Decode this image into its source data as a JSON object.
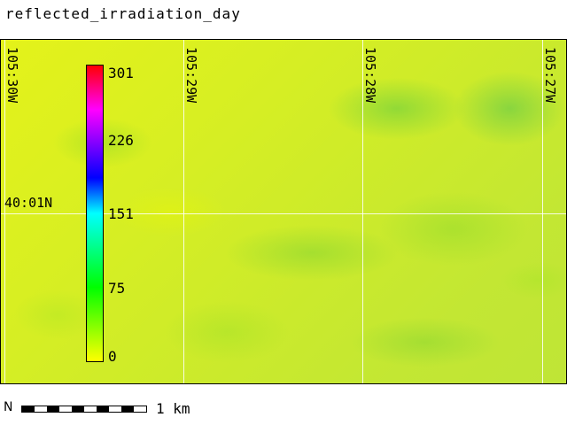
{
  "title": "reflected_irradiation_day",
  "map": {
    "longitude_labels": [
      "105:30W",
      "105:29W",
      "105:28W",
      "105:27W"
    ],
    "latitude_labels": [
      "40:01N"
    ]
  },
  "legend": {
    "ticks": [
      "301",
      "226",
      "151",
      "75",
      "0"
    ],
    "colors": [
      "#ffff00",
      "#00ff00",
      "#00ffff",
      "#0000ff",
      "#ff00ff",
      "#ff0000"
    ]
  },
  "scalebar": {
    "north": "N",
    "label": "1 km"
  }
}
